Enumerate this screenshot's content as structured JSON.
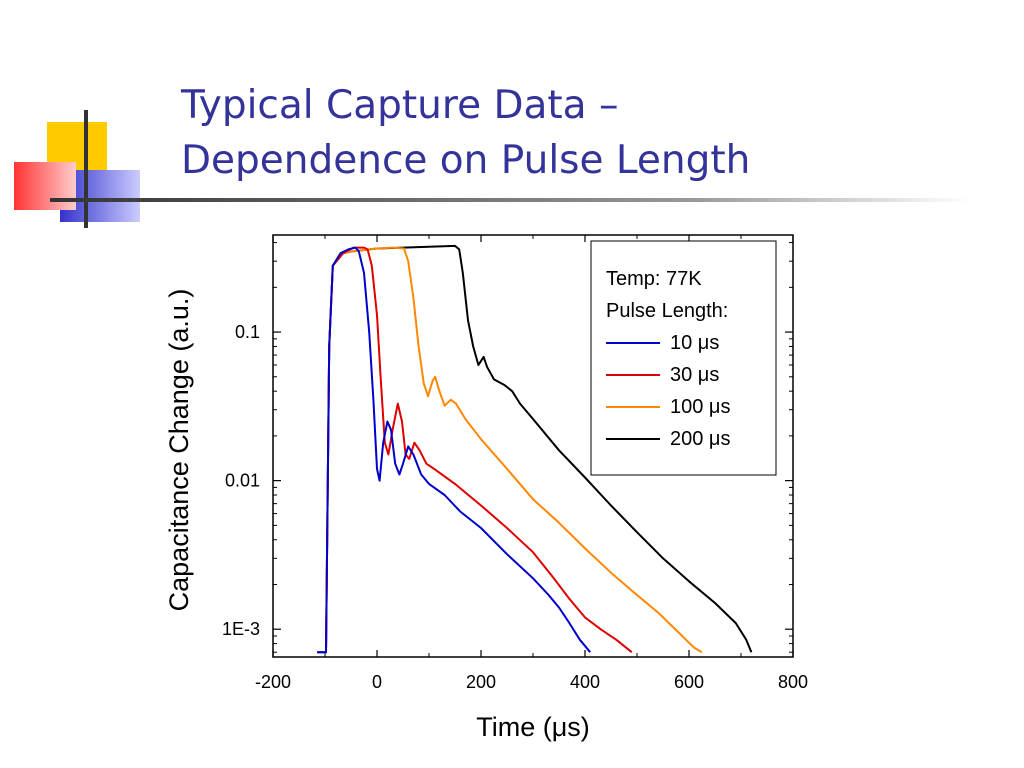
{
  "slide": {
    "title_line1": "Typical Capture Data –",
    "title_line2": "Dependence on Pulse Length",
    "title_color": "#333399",
    "logo_colors": {
      "yellow": "#ffcc00",
      "blue": "#3333cc",
      "red": "#ff3333",
      "rule": "#333333"
    }
  },
  "chart_data": {
    "type": "line",
    "xlabel": "Time (μs)",
    "ylabel": "Capacitance Change (a.u.)",
    "xlim": [
      -200,
      800
    ],
    "ylim": [
      0.00065,
      0.45
    ],
    "yscale": "log",
    "x_ticks": [
      "-200",
      "0",
      "200",
      "400",
      "600",
      "800"
    ],
    "x_tick_values": [
      -200,
      0,
      200,
      400,
      600,
      800
    ],
    "y_ticks": [
      "1E-3",
      "0.01",
      "0.1"
    ],
    "y_tick_values": [
      0.001,
      0.01,
      0.1
    ],
    "legend": {
      "position": "top-right",
      "header_line1": "Temp: 77K",
      "header_line2": "Pulse Length:"
    },
    "series": [
      {
        "name": "10 μs",
        "color": "#0000cc",
        "points": [
          [
            -115,
            0.0007
          ],
          [
            -98,
            0.0007
          ],
          [
            -92,
            0.08
          ],
          [
            -85,
            0.28
          ],
          [
            -70,
            0.34
          ],
          [
            -55,
            0.36
          ],
          [
            -42,
            0.37
          ],
          [
            -35,
            0.35
          ],
          [
            -25,
            0.25
          ],
          [
            -15,
            0.1
          ],
          [
            -7,
            0.035
          ],
          [
            0,
            0.012
          ],
          [
            5,
            0.01
          ],
          [
            12,
            0.018
          ],
          [
            20,
            0.025
          ],
          [
            27,
            0.022
          ],
          [
            35,
            0.013
          ],
          [
            43,
            0.011
          ],
          [
            50,
            0.013
          ],
          [
            60,
            0.017
          ],
          [
            70,
            0.015
          ],
          [
            85,
            0.011
          ],
          [
            100,
            0.0095
          ],
          [
            130,
            0.008
          ],
          [
            160,
            0.0062
          ],
          [
            200,
            0.0048
          ],
          [
            250,
            0.0032
          ],
          [
            300,
            0.0022
          ],
          [
            330,
            0.0017
          ],
          [
            350,
            0.0014
          ],
          [
            370,
            0.0011
          ],
          [
            390,
            0.00085
          ],
          [
            410,
            0.0007
          ]
        ]
      },
      {
        "name": "30 μs",
        "color": "#dd0000",
        "points": [
          [
            -98,
            0.0007
          ],
          [
            -92,
            0.08
          ],
          [
            -85,
            0.28
          ],
          [
            -65,
            0.34
          ],
          [
            -45,
            0.37
          ],
          [
            -25,
            0.37
          ],
          [
            -18,
            0.36
          ],
          [
            -10,
            0.28
          ],
          [
            0,
            0.13
          ],
          [
            7,
            0.05
          ],
          [
            15,
            0.018
          ],
          [
            22,
            0.015
          ],
          [
            30,
            0.022
          ],
          [
            40,
            0.033
          ],
          [
            48,
            0.025
          ],
          [
            55,
            0.015
          ],
          [
            62,
            0.014
          ],
          [
            72,
            0.018
          ],
          [
            82,
            0.016
          ],
          [
            95,
            0.013
          ],
          [
            110,
            0.012
          ],
          [
            150,
            0.0095
          ],
          [
            200,
            0.0068
          ],
          [
            250,
            0.0048
          ],
          [
            300,
            0.0033
          ],
          [
            340,
            0.0022
          ],
          [
            370,
            0.0016
          ],
          [
            400,
            0.0012
          ],
          [
            430,
            0.001
          ],
          [
            460,
            0.00085
          ],
          [
            490,
            0.0007
          ]
        ]
      },
      {
        "name": "100 μs",
        "color": "#ff8800",
        "points": [
          [
            -98,
            0.0007
          ],
          [
            -92,
            0.08
          ],
          [
            -85,
            0.28
          ],
          [
            -65,
            0.34
          ],
          [
            -45,
            0.35
          ],
          [
            0,
            0.365
          ],
          [
            30,
            0.37
          ],
          [
            52,
            0.365
          ],
          [
            60,
            0.3
          ],
          [
            70,
            0.17
          ],
          [
            80,
            0.08
          ],
          [
            90,
            0.045
          ],
          [
            98,
            0.037
          ],
          [
            107,
            0.047
          ],
          [
            112,
            0.05
          ],
          [
            120,
            0.04
          ],
          [
            130,
            0.032
          ],
          [
            142,
            0.035
          ],
          [
            152,
            0.033
          ],
          [
            170,
            0.026
          ],
          [
            200,
            0.019
          ],
          [
            250,
            0.012
          ],
          [
            300,
            0.0075
          ],
          [
            350,
            0.0052
          ],
          [
            400,
            0.0035
          ],
          [
            450,
            0.0024
          ],
          [
            500,
            0.0017
          ],
          [
            540,
            0.0013
          ],
          [
            580,
            0.00095
          ],
          [
            610,
            0.00075
          ],
          [
            625,
            0.0007
          ]
        ]
      },
      {
        "name": "200 μs",
        "color": "#000000",
        "points": [
          [
            -115,
            0.0007
          ],
          [
            -98,
            0.0007
          ],
          [
            -92,
            0.08
          ],
          [
            -85,
            0.28
          ],
          [
            -65,
            0.34
          ],
          [
            -45,
            0.35
          ],
          [
            0,
            0.365
          ],
          [
            100,
            0.375
          ],
          [
            150,
            0.38
          ],
          [
            158,
            0.36
          ],
          [
            165,
            0.25
          ],
          [
            175,
            0.12
          ],
          [
            185,
            0.08
          ],
          [
            195,
            0.06
          ],
          [
            205,
            0.068
          ],
          [
            212,
            0.058
          ],
          [
            225,
            0.048
          ],
          [
            245,
            0.044
          ],
          [
            260,
            0.04
          ],
          [
            275,
            0.033
          ],
          [
            300,
            0.026
          ],
          [
            350,
            0.016
          ],
          [
            400,
            0.0105
          ],
          [
            450,
            0.0068
          ],
          [
            500,
            0.0045
          ],
          [
            550,
            0.003
          ],
          [
            600,
            0.0021
          ],
          [
            650,
            0.0015
          ],
          [
            690,
            0.0011
          ],
          [
            710,
            0.00085
          ],
          [
            720,
            0.0007
          ]
        ]
      }
    ]
  }
}
